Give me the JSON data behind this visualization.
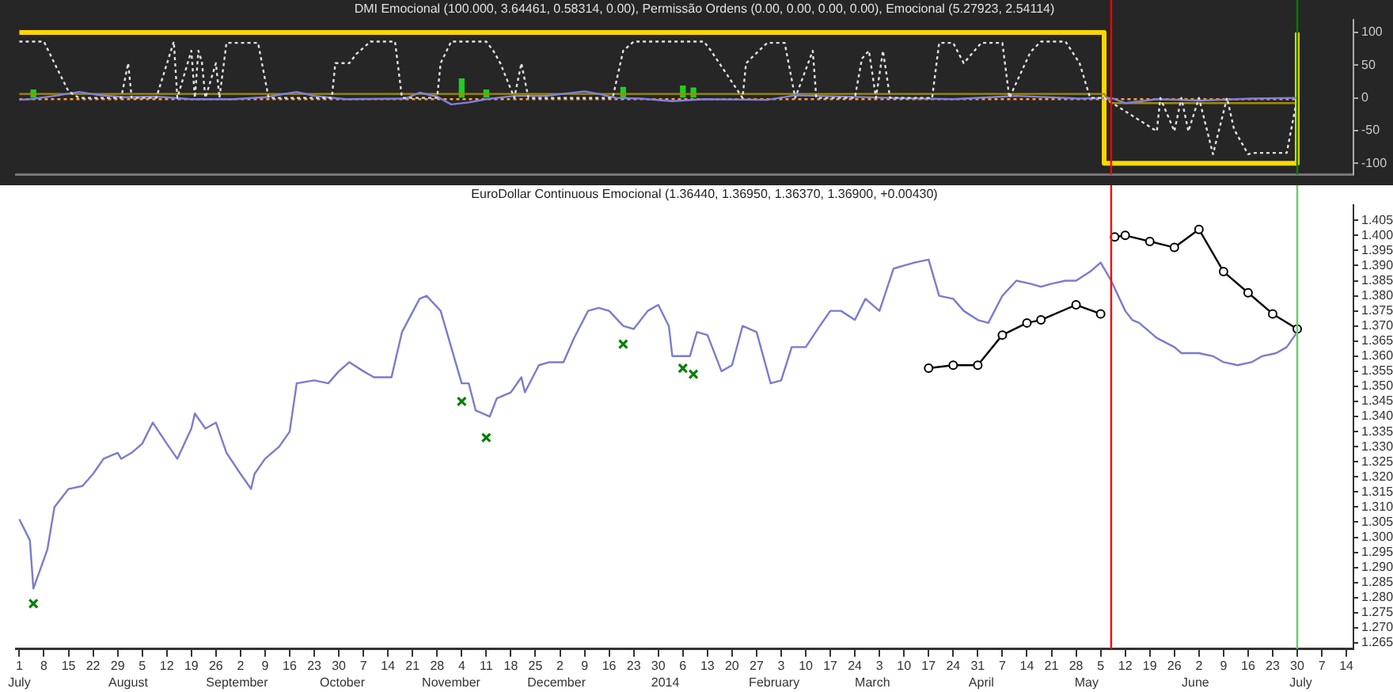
{
  "chart_data": [
    {
      "type": "line",
      "title": "DMI Emocional (100.000, 3.64461, 0.58314, 0.00), Permissão Ordens (0.00, 0.00, 0.00, 0.00), Emocional (5.27923, 2.54114)",
      "tick_labels": "y",
      "xlim": [
        "2013-06-30",
        "2014-07-16"
      ],
      "ylim": [
        -117,
        119
      ],
      "yticks": [
        100,
        50,
        0,
        -50,
        -100
      ],
      "series": [
        {
          "color": "#e0e0e0",
          "line_style": "dotted",
          "x": [
            "2013-07-01",
            "2013-07-08",
            "2013-07-11",
            "2013-07-15",
            "2013-07-18",
            "2013-07-30",
            "2013-08-01",
            "2013-08-02",
            "2013-08-09",
            "2013-08-14",
            "2013-08-15",
            "2013-08-19",
            "2013-08-20",
            "2013-08-21",
            "2013-08-22",
            "2013-08-23",
            "2013-08-26",
            "2013-08-27",
            "2013-08-29",
            "2013-09-07",
            "2013-09-10",
            "2013-09-28",
            "2013-09-29",
            "2013-10-03",
            "2013-10-05",
            "2013-10-09",
            "2013-10-16",
            "2013-10-18",
            "2013-10-28",
            "2013-10-29",
            "2013-11-01",
            "2013-11-11",
            "2013-11-13",
            "2013-11-15",
            "2013-11-19",
            "2013-11-21",
            "2013-11-23",
            "2013-12-17",
            "2013-12-20",
            "2013-12-23",
            "2014-01-12",
            "2014-01-14",
            "2014-01-23",
            "2014-01-24",
            "2014-01-30",
            "2014-02-04",
            "2014-02-07",
            "2014-02-12",
            "2014-02-13",
            "2014-02-24",
            "2014-02-26",
            "2014-02-28",
            "2014-03-02",
            "2014-03-04",
            "2014-03-06",
            "2014-03-18",
            "2014-03-20",
            "2014-03-24",
            "2014-03-27",
            "2014-04-01",
            "2014-04-07",
            "2014-04-09",
            "2014-04-15",
            "2014-04-18",
            "2014-04-25",
            "2014-04-29",
            "2014-05-02",
            "2014-05-06",
            "2014-05-21",
            "2014-05-22",
            "2014-05-26",
            "2014-05-28",
            "2014-05-30",
            "2014-06-02",
            "2014-06-06",
            "2014-06-10",
            "2014-06-12",
            "2014-06-16",
            "2014-06-18",
            "2014-06-27",
            "2014-06-30"
          ],
          "values": [
            86,
            86,
            53,
            10,
            0,
            0,
            53,
            0,
            0,
            86,
            0,
            72,
            0,
            72,
            55,
            0,
            53,
            0,
            84,
            84,
            0,
            0,
            53,
            53,
            67,
            86,
            86,
            0,
            0,
            53,
            86,
            86,
            72,
            53,
            0,
            53,
            0,
            0,
            72,
            86,
            86,
            72,
            0,
            53,
            84,
            84,
            0,
            72,
            0,
            0,
            60,
            72,
            0,
            72,
            0,
            0,
            84,
            84,
            53,
            84,
            84,
            0,
            70,
            86,
            86,
            53,
            0,
            0,
            -51,
            0,
            -51,
            0,
            -51,
            0,
            -86,
            0,
            -48,
            -86,
            -84,
            -84,
            0
          ]
        },
        {
          "color": "#8080e0",
          "x": [
            "2013-07-01",
            "2013-07-04",
            "2013-07-11",
            "2013-07-18",
            "2013-07-24",
            "2013-07-31",
            "2013-08-09",
            "2013-08-19",
            "2013-08-31",
            "2013-09-09",
            "2013-09-18",
            "2013-09-23",
            "2013-10-02",
            "2013-10-19",
            "2013-10-23",
            "2013-10-28",
            "2013-11-01",
            "2013-11-06",
            "2013-11-11",
            "2013-11-19",
            "2013-11-28",
            "2013-12-09",
            "2013-12-13",
            "2013-12-18",
            "2013-12-25",
            "2014-01-03",
            "2014-01-12",
            "2014-01-30",
            "2014-02-07",
            "2014-03-06",
            "2014-03-24",
            "2014-04-11",
            "2014-04-29",
            "2014-05-08",
            "2014-05-12",
            "2014-05-21",
            "2014-06-03",
            "2014-06-17",
            "2014-06-30"
          ],
          "values": [
            -3,
            -2,
            3,
            9,
            4,
            1,
            2,
            -2,
            -2,
            1,
            9,
            3,
            -2,
            -1,
            8,
            2,
            -10,
            -7,
            -2,
            3,
            3,
            10,
            6,
            0,
            -1,
            -5,
            -2,
            -3,
            4,
            0,
            -2,
            3,
            -1,
            0,
            -8,
            -2,
            -4,
            -1,
            0
          ]
        },
        {
          "color": "#a08c00",
          "x": [
            "2013-07-01",
            "2014-05-06",
            "2014-05-08",
            "2014-06-30"
          ],
          "values": [
            6,
            6,
            -8,
            -8
          ]
        },
        {
          "color": "#ffa040",
          "line_style": "dotted",
          "x": [
            "2013-07-01",
            "2014-06-30"
          ],
          "values": [
            -2,
            -2
          ]
        },
        {
          "type": "step",
          "color": "#ffd700",
          "x": [
            "2013-07-01",
            "2014-05-06",
            "2014-06-30"
          ],
          "values": [
            100,
            -100,
            100
          ]
        },
        {
          "type": "bar",
          "color": "#22cc22",
          "x": [
            "2013-07-05",
            "2013-11-04",
            "2013-11-11",
            "2013-12-20",
            "2014-01-06",
            "2014-01-09"
          ],
          "values": [
            12,
            29,
            12,
            16,
            18,
            15
          ]
        }
      ],
      "ref_lines": [
        {
          "axis": "x",
          "value": "2014-05-08",
          "color": "#ff0000"
        },
        {
          "axis": "x",
          "value": "2014-06-30",
          "color": "#008000"
        }
      ]
    },
    {
      "type": "line",
      "title": "EuroDollar Continuous Emocional (1.36440, 1.36950, 1.36370, 1.36900, +0.00430)",
      "xlim": [
        "2013-06-30",
        "2014-07-16"
      ],
      "ylim": [
        1.263,
        1.41
      ],
      "xticks": [
        {
          "value": "2013-07-01",
          "label": "1"
        },
        {
          "value": "2013-07-08",
          "label": "8"
        },
        {
          "value": "2013-07-15",
          "label": "15"
        },
        {
          "value": "2013-07-22",
          "label": "22"
        },
        {
          "value": "2013-07-29",
          "label": "29"
        },
        {
          "value": "2013-08-05",
          "label": "5"
        },
        {
          "value": "2013-08-12",
          "label": "12"
        },
        {
          "value": "2013-08-19",
          "label": "19"
        },
        {
          "value": "2013-08-26",
          "label": "26"
        },
        {
          "value": "2013-09-02",
          "label": "2"
        },
        {
          "value": "2013-09-09",
          "label": "9"
        },
        {
          "value": "2013-09-16",
          "label": "16"
        },
        {
          "value": "2013-09-23",
          "label": "23"
        },
        {
          "value": "2013-09-30",
          "label": "30"
        },
        {
          "value": "2013-10-07",
          "label": "7"
        },
        {
          "value": "2013-10-14",
          "label": "14"
        },
        {
          "value": "2013-10-21",
          "label": "21"
        },
        {
          "value": "2013-10-28",
          "label": "28"
        },
        {
          "value": "2013-11-04",
          "label": "4"
        },
        {
          "value": "2013-11-11",
          "label": "11"
        },
        {
          "value": "2013-11-18",
          "label": "18"
        },
        {
          "value": "2013-11-25",
          "label": "25"
        },
        {
          "value": "2013-12-02",
          "label": "2"
        },
        {
          "value": "2013-12-09",
          "label": "9"
        },
        {
          "value": "2013-12-16",
          "label": "16"
        },
        {
          "value": "2013-12-23",
          "label": "23"
        },
        {
          "value": "2013-12-30",
          "label": "30"
        },
        {
          "value": "2014-01-06",
          "label": "6"
        },
        {
          "value": "2014-01-13",
          "label": "13"
        },
        {
          "value": "2014-01-20",
          "label": "20"
        },
        {
          "value": "2014-01-27",
          "label": "27"
        },
        {
          "value": "2014-02-03",
          "label": "3"
        },
        {
          "value": "2014-02-10",
          "label": "10"
        },
        {
          "value": "2014-02-17",
          "label": "17"
        },
        {
          "value": "2014-02-24",
          "label": "24"
        },
        {
          "value": "2014-03-03",
          "label": "3"
        },
        {
          "value": "2014-03-10",
          "label": "10"
        },
        {
          "value": "2014-03-17",
          "label": "17"
        },
        {
          "value": "2014-03-24",
          "label": "24"
        },
        {
          "value": "2014-03-31",
          "label": "31"
        },
        {
          "value": "2014-04-07",
          "label": "7"
        },
        {
          "value": "2014-04-14",
          "label": "14"
        },
        {
          "value": "2014-04-21",
          "label": "21"
        },
        {
          "value": "2014-04-28",
          "label": "28"
        },
        {
          "value": "2014-05-05",
          "label": "5"
        },
        {
          "value": "2014-05-12",
          "label": "12"
        },
        {
          "value": "2014-05-19",
          "label": "19"
        },
        {
          "value": "2014-05-26",
          "label": "26"
        },
        {
          "value": "2014-06-02",
          "label": "2"
        },
        {
          "value": "2014-06-09",
          "label": "9"
        },
        {
          "value": "2014-06-16",
          "label": "16"
        },
        {
          "value": "2014-06-23",
          "label": "23"
        },
        {
          "value": "2014-06-30",
          "label": "30"
        },
        {
          "value": "2014-07-07",
          "label": "7"
        },
        {
          "value": "2014-07-14",
          "label": "14"
        }
      ],
      "yticks": [
        1.265,
        {
          "value": 1.27,
          "label": "1.270"
        },
        1.275,
        {
          "value": 1.28,
          "label": "1.280"
        },
        1.285,
        {
          "value": 1.29,
          "label": "1.290"
        },
        1.295,
        {
          "value": 1.3,
          "label": "1.300"
        },
        1.305,
        {
          "value": 1.31,
          "label": "1.310"
        },
        1.315,
        {
          "value": 1.32,
          "label": "1.320"
        },
        1.325,
        {
          "value": 1.33,
          "label": "1.330"
        },
        1.335,
        {
          "value": 1.34,
          "label": "1.340"
        },
        1.345,
        {
          "value": 1.35,
          "label": "1.350"
        },
        1.355,
        {
          "value": 1.36,
          "label": "1.360"
        },
        1.365,
        {
          "value": 1.37,
          "label": "1.370"
        },
        1.375,
        {
          "value": 1.38,
          "label": "1.380"
        },
        1.385,
        {
          "value": 1.39,
          "label": "1.390"
        },
        1.395,
        {
          "value": 1.4,
          "label": "1.400"
        },
        1.405
      ],
      "series": [
        {
          "color": "#7b7bcf",
          "x": [
            "2013-07-01",
            "2013-07-04",
            "2013-07-05",
            "2013-07-09",
            "2013-07-11",
            "2013-07-15",
            "2013-07-19",
            "2013-07-22",
            "2013-07-25",
            "2013-07-29",
            "2013-07-30",
            "2013-08-02",
            "2013-08-05",
            "2013-08-08",
            "2013-08-12",
            "2013-08-15",
            "2013-08-19",
            "2013-08-20",
            "2013-08-23",
            "2013-08-26",
            "2013-08-29",
            "2013-09-02",
            "2013-09-05",
            "2013-09-06",
            "2013-09-09",
            "2013-09-13",
            "2013-09-16",
            "2013-09-18",
            "2013-09-23",
            "2013-09-27",
            "2013-09-30",
            "2013-10-03",
            "2013-10-07",
            "2013-10-10",
            "2013-10-15",
            "2013-10-18",
            "2013-10-23",
            "2013-10-25",
            "2013-10-29",
            "2013-11-01",
            "2013-11-04",
            "2013-11-06",
            "2013-11-08",
            "2013-11-12",
            "2013-11-14",
            "2013-11-18",
            "2013-11-21",
            "2013-11-22",
            "2013-11-26",
            "2013-11-29",
            "2013-12-03",
            "2013-12-06",
            "2013-12-10",
            "2013-12-13",
            "2013-12-16",
            "2013-12-20",
            "2013-12-23",
            "2013-12-27",
            "2013-12-30",
            "2014-01-02",
            "2014-01-03",
            "2014-01-08",
            "2014-01-10",
            "2014-01-13",
            "2014-01-17",
            "2014-01-20",
            "2014-01-23",
            "2014-01-27",
            "2014-01-31",
            "2014-02-03",
            "2014-02-06",
            "2014-02-10",
            "2014-02-14",
            "2014-02-17",
            "2014-02-20",
            "2014-02-24",
            "2014-02-27",
            "2014-03-03",
            "2014-03-07",
            "2014-03-10",
            "2014-03-13",
            "2014-03-17",
            "2014-03-20",
            "2014-03-24",
            "2014-03-27",
            "2014-03-31",
            "2014-04-03",
            "2014-04-07",
            "2014-04-11",
            "2014-04-15",
            "2014-04-18",
            "2014-04-21",
            "2014-04-25",
            "2014-04-28",
            "2014-05-02",
            "2014-05-05",
            "2014-05-08",
            "2014-05-12",
            "2014-05-14",
            "2014-05-16",
            "2014-05-21",
            "2014-05-26",
            "2014-05-28",
            "2014-06-02",
            "2014-06-06",
            "2014-06-09",
            "2014-06-13",
            "2014-06-17",
            "2014-06-20",
            "2014-06-24",
            "2014-06-27",
            "2014-06-30"
          ],
          "values": [
            1.306,
            1.299,
            1.283,
            1.296,
            1.31,
            1.316,
            1.317,
            1.321,
            1.326,
            1.328,
            1.326,
            1.328,
            1.331,
            1.338,
            1.331,
            1.326,
            1.336,
            1.341,
            1.336,
            1.338,
            1.328,
            1.321,
            1.316,
            1.321,
            1.326,
            1.33,
            1.335,
            1.351,
            1.352,
            1.351,
            1.355,
            1.358,
            1.355,
            1.353,
            1.353,
            1.368,
            1.379,
            1.38,
            1.375,
            1.363,
            1.351,
            1.351,
            1.342,
            1.34,
            1.346,
            1.348,
            1.353,
            1.348,
            1.357,
            1.358,
            1.358,
            1.366,
            1.375,
            1.376,
            1.375,
            1.37,
            1.369,
            1.375,
            1.377,
            1.37,
            1.36,
            1.36,
            1.368,
            1.367,
            1.355,
            1.357,
            1.37,
            1.368,
            1.351,
            1.352,
            1.363,
            1.363,
            1.37,
            1.375,
            1.375,
            1.372,
            1.379,
            1.375,
            1.389,
            1.39,
            1.391,
            1.392,
            1.38,
            1.379,
            1.375,
            1.372,
            1.371,
            1.38,
            1.385,
            1.384,
            1.383,
            1.384,
            1.385,
            1.385,
            1.388,
            1.391,
            1.385,
            1.375,
            1.372,
            1.371,
            1.366,
            1.363,
            1.361,
            1.361,
            1.36,
            1.358,
            1.357,
            1.358,
            1.36,
            1.361,
            1.363,
            1.368
          ]
        },
        {
          "color": "#000000",
          "marker": "circle",
          "x": [
            "2014-03-17",
            "2014-03-24",
            "2014-03-31",
            "2014-04-07",
            "2014-04-14",
            "2014-04-18",
            "2014-04-28",
            "2014-05-05"
          ],
          "values": [
            1.356,
            1.357,
            1.357,
            1.367,
            1.371,
            1.372,
            1.377,
            1.374
          ]
        },
        {
          "color": "#000000",
          "marker": "circle",
          "x": [
            "2014-05-09",
            "2014-05-12",
            "2014-05-19",
            "2014-05-26",
            "2014-06-02",
            "2014-06-09",
            "2014-06-16",
            "2014-06-23",
            "2014-06-30"
          ],
          "values": [
            1.3995,
            1.4,
            1.398,
            1.396,
            1.402,
            1.388,
            1.381,
            1.374,
            1.369
          ]
        },
        {
          "type": "scatter",
          "color": "#008000",
          "marker": "cross",
          "x": [
            "2013-07-05",
            "2013-11-04",
            "2013-11-11",
            "2013-12-20",
            "2014-01-06",
            "2014-01-09"
          ],
          "values": [
            1.278,
            1.345,
            1.333,
            1.364,
            1.356,
            1.354
          ]
        }
      ],
      "ref_lines": [
        {
          "axis": "x",
          "value": "2014-05-08",
          "color": "#ff0000"
        },
        {
          "axis": "x",
          "value": "2014-06-30",
          "color": "#66cc66"
        }
      ],
      "x2lim": [
        "2013-06-30",
        "2014-07-16"
      ],
      "x2ticks": [
        {
          "value": "2013-07-01",
          "label": "July"
        },
        {
          "value": "2013-08-01",
          "label": "August"
        },
        {
          "value": "2013-09-01",
          "label": "September"
        },
        {
          "value": "2013-10-01",
          "label": "October"
        },
        {
          "value": "2013-11-01",
          "label": "November"
        },
        {
          "value": "2013-12-01",
          "label": "December"
        },
        {
          "value": "2014-01-01",
          "label": "2014"
        },
        {
          "value": "2014-02-01",
          "label": "February"
        },
        {
          "value": "2014-03-01",
          "label": "March"
        },
        {
          "value": "2014-04-01",
          "label": "April"
        },
        {
          "value": "2014-05-01",
          "label": "May"
        },
        {
          "value": "2014-06-01",
          "label": "June"
        },
        {
          "value": "2014-07-01",
          "label": "July"
        }
      ]
    }
  ]
}
